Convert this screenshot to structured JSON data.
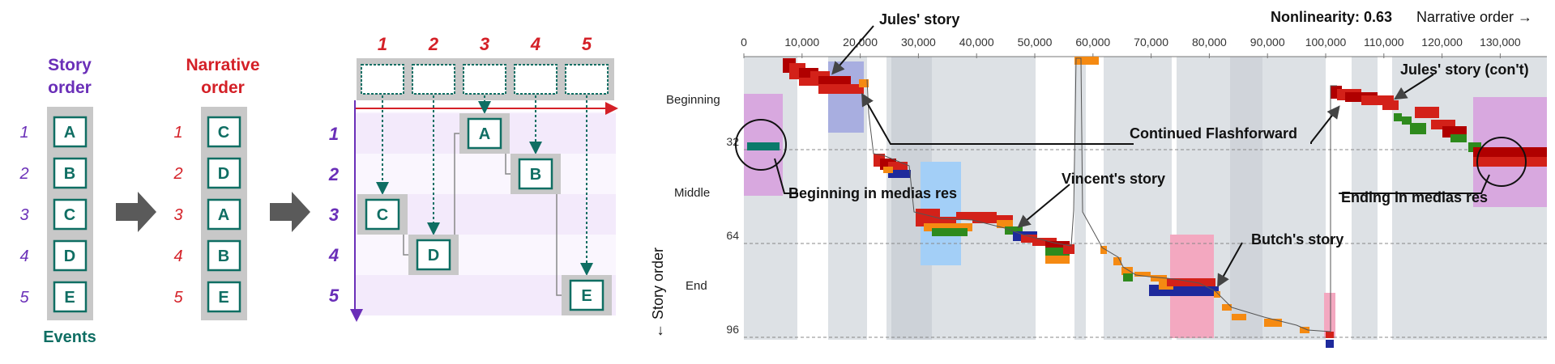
{
  "left": {
    "story_order_title": [
      "Story",
      "order"
    ],
    "narrative_order_title": [
      "Narrative",
      "order"
    ],
    "events_label": "Events",
    "row_numbers": [
      "1",
      "2",
      "3",
      "4",
      "5"
    ],
    "story_events": [
      "A",
      "B",
      "C",
      "D",
      "E"
    ],
    "narrative_events": [
      "C",
      "D",
      "A",
      "B",
      "E"
    ],
    "col_numbers": [
      "1",
      "2",
      "3",
      "4",
      "5"
    ],
    "matrix_placements": [
      {
        "story_row": 3,
        "narr_col": 1,
        "label": "C"
      },
      {
        "story_row": 4,
        "narr_col": 2,
        "label": "D"
      },
      {
        "story_row": 1,
        "narr_col": 3,
        "label": "A"
      },
      {
        "story_row": 2,
        "narr_col": 4,
        "label": "B"
      },
      {
        "story_row": 5,
        "narr_col": 5,
        "label": "E"
      }
    ]
  },
  "colors": {
    "story": "#6a2fb8",
    "narrative": "#d42027",
    "event": "#0f6e63",
    "box_bg": "#c8c8c8",
    "arrow": "#555555"
  },
  "right": {
    "nonlinearity_label": "Nonlinearity: 0.63",
    "narrative_axis_label": "Narrative order →",
    "story_axis_label": "← Story order",
    "x_ticks": [
      "0",
      "10,000",
      "20,000",
      "30,000",
      "40,000",
      "50,000",
      "60,000",
      "70,000",
      "80,000",
      "90,000",
      "100,000",
      "110,000",
      "120,000",
      "130,000"
    ],
    "y_ticks": [
      "32",
      "64",
      "96"
    ],
    "y_sections": [
      "Beginning",
      "Middle",
      "End"
    ],
    "annotations": {
      "jules_story": "Jules' story",
      "jules_story_cont": "Jules' story (con't)",
      "continued_flashforward": "Continued Flashforward",
      "beginning_in_medias_res": "Beginning in medias res",
      "vincents_story": "Vincent's story",
      "butchs_story": "Butch's story",
      "ending_in_medias_res": "Ending in medias res"
    }
  }
}
